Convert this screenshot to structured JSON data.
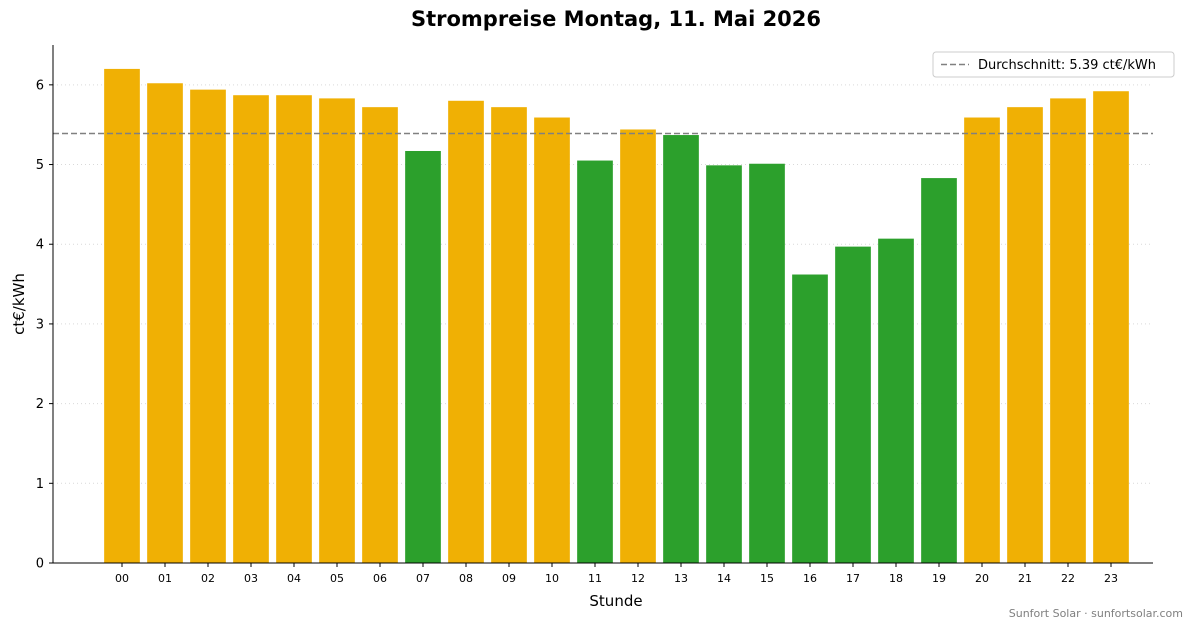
{
  "chart_data": {
    "type": "bar",
    "title": "Strompreise Montag, 11. Mai 2026",
    "xlabel": "Stunde",
    "ylabel": "ct€/kWh",
    "ylim": [
      0,
      6.5
    ],
    "yticks": [
      0,
      1,
      2,
      3,
      4,
      5,
      6
    ],
    "grid": "horizontal dotted",
    "categories": [
      "00",
      "01",
      "02",
      "03",
      "04",
      "05",
      "06",
      "07",
      "08",
      "09",
      "10",
      "11",
      "12",
      "13",
      "14",
      "15",
      "16",
      "17",
      "18",
      "19",
      "20",
      "21",
      "22",
      "23"
    ],
    "values": [
      6.2,
      6.02,
      5.94,
      5.87,
      5.87,
      5.83,
      5.72,
      5.17,
      5.8,
      5.72,
      5.59,
      5.05,
      5.44,
      5.37,
      4.99,
      5.01,
      3.62,
      3.97,
      4.07,
      4.83,
      5.59,
      5.72,
      5.83,
      5.92
    ],
    "average": {
      "value": 5.39,
      "label": "Durchschnitt: 5.39 ct€/kWh"
    },
    "legend_position": "top-right",
    "colors": {
      "above_average": "#f0b004",
      "below_average": "#2ca02c",
      "average_line": "#808080"
    }
  },
  "credit": "Sunfort Solar · sunfortsolar.com"
}
